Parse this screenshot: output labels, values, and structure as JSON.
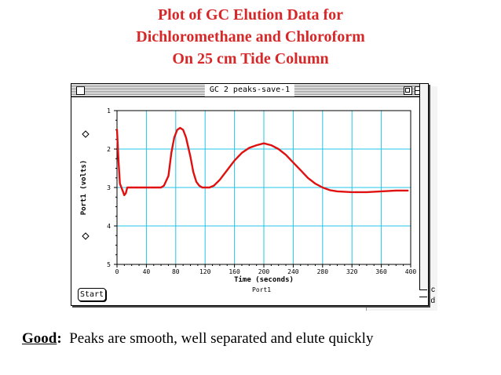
{
  "slide": {
    "title_lines": [
      "Plot of GC Elution Data for",
      "Dichloromethane and Chloroform",
      "On 25 cm Tide Column"
    ],
    "caption_label": "Good",
    "caption_colon": ":",
    "caption_text": "  Peaks are smooth, well separated and elute quickly"
  },
  "window": {
    "title": "GC 2 peaks-save-1",
    "start_label": "Start",
    "port_label": "Port1"
  },
  "background_fragments": [
    "c",
    "d"
  ],
  "colors": {
    "title": "#d62828",
    "trace": "#e01010",
    "grid": "#22c6e8"
  },
  "chart_data": {
    "type": "line",
    "xlabel": "Time (seconds)",
    "ylabel": "Port1 (volts)",
    "xlim": [
      0,
      400
    ],
    "ylim": [
      1,
      5
    ],
    "y_inverted": true,
    "x_ticks": [
      "0",
      "40",
      "80",
      "120",
      "160",
      "200",
      "240",
      "280",
      "320",
      "360",
      "400"
    ],
    "y_ticks": [
      "1",
      "2",
      "3",
      "4",
      "5"
    ],
    "grid": true,
    "series": [
      {
        "x": [
          0,
          2,
          4,
          6,
          8,
          10,
          12,
          14,
          20,
          40,
          60,
          64,
          70,
          74,
          78,
          82,
          86,
          90,
          94,
          100,
          104,
          108,
          112,
          116,
          120,
          126,
          132,
          140,
          150,
          160,
          170,
          180,
          190,
          200,
          210,
          220,
          230,
          240,
          250,
          260,
          270,
          280,
          290,
          300,
          320,
          340,
          360,
          380,
          396
        ],
        "y": [
          1.5,
          2.3,
          2.9,
          3.0,
          3.1,
          3.2,
          3.15,
          3.0,
          3.0,
          3.0,
          3.0,
          2.95,
          2.7,
          2.1,
          1.7,
          1.5,
          1.45,
          1.5,
          1.7,
          2.2,
          2.6,
          2.85,
          2.95,
          3.0,
          3.0,
          3.0,
          2.95,
          2.8,
          2.55,
          2.3,
          2.1,
          1.97,
          1.9,
          1.85,
          1.9,
          2.0,
          2.15,
          2.35,
          2.55,
          2.75,
          2.9,
          3.0,
          3.07,
          3.1,
          3.12,
          3.12,
          3.1,
          3.08,
          3.08
        ]
      }
    ]
  }
}
